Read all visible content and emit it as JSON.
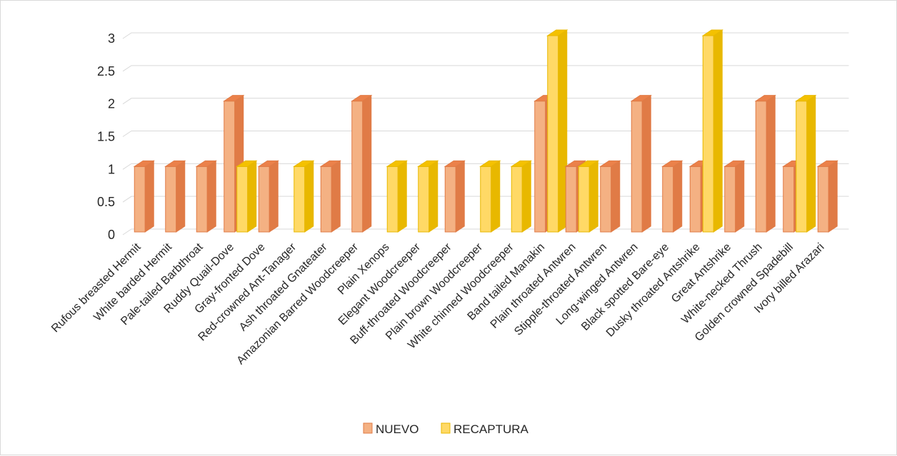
{
  "chart_data": {
    "type": "bar",
    "title": "",
    "xlabel": "",
    "ylabel": "",
    "ylim": [
      0,
      3
    ],
    "yticks": [
      "0",
      "0.5",
      "1",
      "1.5",
      "2",
      "2.5",
      "3"
    ],
    "grid": true,
    "legend_position": "bottom",
    "style": "3d-column",
    "categories": [
      "Rufous breasted Hermit",
      "White barded Hermit",
      "Pale-tailed Barbthroat",
      "Ruddy Quail-Dove",
      "Gray-fronted Dove",
      "Red-crowned Ant-Tanager",
      "Ash throated Gnateater",
      "Amazonian Barred Woodcreeper",
      "Plain Xenops",
      "Elegant Woodcreeper",
      "Buff-throated Woodcreeper",
      "Plain brown Woodcreeper",
      "White chinned Woodcreeper",
      "Band tailed Manakin",
      "Plain throated Antwren",
      "Stipple-throated Antwren",
      "Long-winged Antwren",
      "Black spotted Bare-eye",
      "Dusky throated Antshrike",
      "Great Antshrike",
      "White-necked Thrush",
      "Golden crowned Spadebill",
      "Ivory billed Arazari"
    ],
    "series": [
      {
        "name": "NUEVO",
        "color": "#F4B183",
        "edge": "#E07B46",
        "values": [
          1,
          1,
          1,
          2,
          1,
          null,
          1,
          2,
          null,
          null,
          1,
          null,
          null,
          2,
          1,
          1,
          2,
          1,
          1,
          1,
          2,
          1,
          1
        ]
      },
      {
        "name": "RECAPTURA",
        "color": "#FFD966",
        "edge": "#E8B800",
        "values": [
          null,
          null,
          null,
          1,
          null,
          1,
          null,
          null,
          1,
          1,
          null,
          1,
          1,
          3,
          1,
          null,
          null,
          null,
          3,
          null,
          null,
          2,
          null
        ]
      }
    ]
  }
}
